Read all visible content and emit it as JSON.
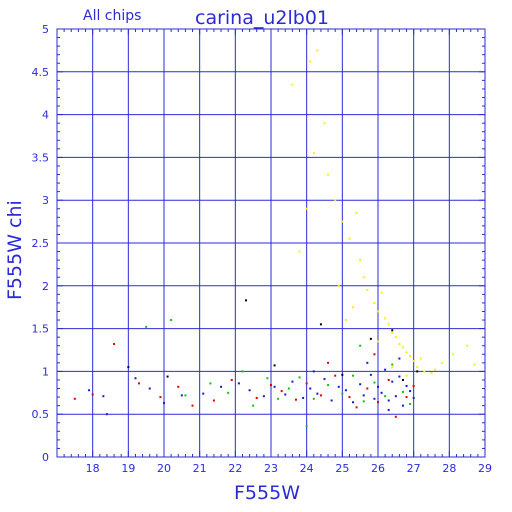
{
  "chart_data": {
    "type": "scatter",
    "title": "carina_u2lb01",
    "subtitle": "All chips",
    "xlabel": "F555W",
    "ylabel": "F555W chi",
    "xlim": [
      17,
      29
    ],
    "ylim": [
      0,
      5
    ],
    "xticks_major": [
      18,
      19,
      20,
      21,
      22,
      23,
      24,
      25,
      26,
      27,
      28,
      29
    ],
    "yticks_major": [
      0,
      0.5,
      1,
      1.5,
      2,
      2.5,
      3,
      3.5,
      4,
      4.5,
      5
    ],
    "grid": true,
    "series_colors": {
      "blue": "#1818d0",
      "red": "#e00000",
      "green": "#10c010",
      "black": "#000000",
      "yellow": "#ffee00"
    },
    "series": [
      {
        "color": "blue",
        "points": [
          [
            17.9,
            0.78
          ],
          [
            18.3,
            0.71
          ],
          [
            18.4,
            0.5
          ],
          [
            19.2,
            0.92
          ],
          [
            19.6,
            0.8
          ],
          [
            20.0,
            0.63
          ],
          [
            20.5,
            0.72
          ],
          [
            21.1,
            0.74
          ],
          [
            21.6,
            0.82
          ],
          [
            22.1,
            0.86
          ],
          [
            22.4,
            0.78
          ],
          [
            22.8,
            0.71
          ],
          [
            23.1,
            0.82
          ],
          [
            23.4,
            0.73
          ],
          [
            23.6,
            0.88
          ],
          [
            23.9,
            0.69
          ],
          [
            24.1,
            0.8
          ],
          [
            24.3,
            0.74
          ],
          [
            24.5,
            0.91
          ],
          [
            24.7,
            0.66
          ],
          [
            24.9,
            0.82
          ],
          [
            25.1,
            0.78
          ],
          [
            25.3,
            0.64
          ],
          [
            25.5,
            0.85
          ],
          [
            25.6,
            0.72
          ],
          [
            25.8,
            0.96
          ],
          [
            25.9,
            0.68
          ],
          [
            26.0,
            0.82
          ],
          [
            26.1,
            0.75
          ],
          [
            26.2,
            1.02
          ],
          [
            26.3,
            0.66
          ],
          [
            26.4,
            0.88
          ],
          [
            26.5,
            0.71
          ],
          [
            26.6,
            0.94
          ],
          [
            26.7,
            0.6
          ],
          [
            26.8,
            0.83
          ],
          [
            26.9,
            0.77
          ],
          [
            27.0,
            0.69
          ],
          [
            26.3,
            0.55
          ],
          [
            25.7,
            1.1
          ],
          [
            26.6,
            1.15
          ],
          [
            24.2,
            1.0
          ]
        ]
      },
      {
        "color": "red",
        "points": [
          [
            17.5,
            0.68
          ],
          [
            18.0,
            0.73
          ],
          [
            18.6,
            1.32
          ],
          [
            19.3,
            0.86
          ],
          [
            19.9,
            0.7
          ],
          [
            20.4,
            0.82
          ],
          [
            20.8,
            0.6
          ],
          [
            21.4,
            0.66
          ],
          [
            21.9,
            0.9
          ],
          [
            22.6,
            0.69
          ],
          [
            23.0,
            0.84
          ],
          [
            23.3,
            0.77
          ],
          [
            23.7,
            0.67
          ],
          [
            24.0,
            0.86
          ],
          [
            24.4,
            0.72
          ],
          [
            24.8,
            0.95
          ],
          [
            25.2,
            0.7
          ],
          [
            25.4,
            0.58
          ],
          [
            25.7,
            0.8
          ],
          [
            26.0,
            0.64
          ],
          [
            26.3,
            0.9
          ],
          [
            26.5,
            0.47
          ],
          [
            26.8,
            0.7
          ],
          [
            27.0,
            0.83
          ],
          [
            24.6,
            1.1
          ],
          [
            25.9,
            1.2
          ]
        ]
      },
      {
        "color": "green",
        "points": [
          [
            19.5,
            1.52
          ],
          [
            20.2,
            1.6
          ],
          [
            20.6,
            0.72
          ],
          [
            21.3,
            0.86
          ],
          [
            21.8,
            0.75
          ],
          [
            22.2,
            1.0
          ],
          [
            22.5,
            0.6
          ],
          [
            22.9,
            0.92
          ],
          [
            23.2,
            0.68
          ],
          [
            23.5,
            0.8
          ],
          [
            23.8,
            0.93
          ],
          [
            24.2,
            0.68
          ],
          [
            24.6,
            0.84
          ],
          [
            25.0,
            0.74
          ],
          [
            25.3,
            0.95
          ],
          [
            25.6,
            0.65
          ],
          [
            25.9,
            0.87
          ],
          [
            26.2,
            0.71
          ],
          [
            26.4,
            1.08
          ],
          [
            26.7,
            0.76
          ],
          [
            26.9,
            0.62
          ],
          [
            24.0,
            0.36
          ],
          [
            25.5,
            1.3
          ]
        ]
      },
      {
        "color": "black",
        "points": [
          [
            19.0,
            1.05
          ],
          [
            20.1,
            0.94
          ],
          [
            22.3,
            1.83
          ],
          [
            23.1,
            1.07
          ],
          [
            24.4,
            1.55
          ],
          [
            25.0,
            0.96
          ],
          [
            25.8,
            1.38
          ],
          [
            26.4,
            1.48
          ],
          [
            26.7,
            0.9
          ],
          [
            27.1,
            1.0
          ]
        ]
      },
      {
        "color": "yellow",
        "points": [
          [
            23.6,
            4.35
          ],
          [
            24.1,
            4.62
          ],
          [
            24.3,
            4.75
          ],
          [
            24.5,
            3.9
          ],
          [
            24.2,
            3.55
          ],
          [
            24.6,
            3.3
          ],
          [
            24.8,
            3.0
          ],
          [
            25.0,
            2.75
          ],
          [
            25.2,
            2.55
          ],
          [
            25.4,
            2.85
          ],
          [
            25.5,
            2.3
          ],
          [
            25.6,
            2.1
          ],
          [
            25.7,
            1.95
          ],
          [
            25.9,
            1.8
          ],
          [
            26.0,
            1.7
          ],
          [
            26.1,
            1.92
          ],
          [
            26.2,
            1.62
          ],
          [
            26.3,
            1.55
          ],
          [
            26.4,
            1.45
          ],
          [
            26.5,
            1.4
          ],
          [
            26.6,
            1.32
          ],
          [
            26.7,
            1.28
          ],
          [
            26.8,
            1.22
          ],
          [
            26.9,
            1.18
          ],
          [
            27.0,
            1.12
          ],
          [
            27.1,
            1.05
          ],
          [
            27.3,
            1.0
          ],
          [
            27.5,
            0.98
          ],
          [
            27.8,
            1.1
          ],
          [
            28.1,
            1.2
          ],
          [
            28.5,
            1.3
          ],
          [
            28.7,
            1.08
          ],
          [
            24.0,
            2.9
          ],
          [
            24.9,
            2.0
          ],
          [
            25.3,
            1.75
          ],
          [
            26.0,
            1.35
          ],
          [
            26.4,
            1.05
          ],
          [
            26.8,
            0.95
          ],
          [
            27.2,
            1.15
          ],
          [
            27.6,
            1.02
          ],
          [
            23.8,
            2.4
          ],
          [
            25.1,
            1.6
          ]
        ]
      }
    ]
  }
}
